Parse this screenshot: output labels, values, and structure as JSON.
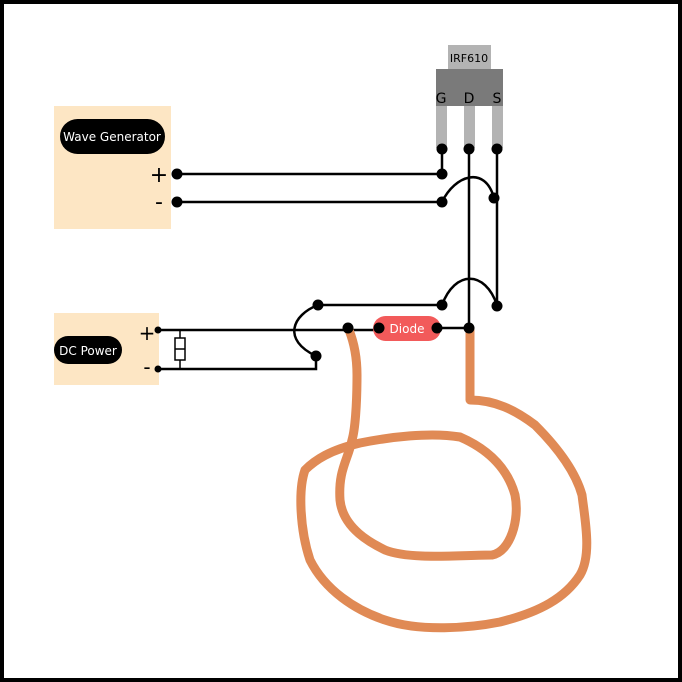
{
  "transistor": {
    "label": "IRF610",
    "pins": {
      "gate": "G",
      "drain": "D",
      "source": "S"
    }
  },
  "wave_generator": {
    "label": "Wave Generator",
    "plus": "+",
    "minus": "-"
  },
  "dc_power": {
    "label": "DC Power",
    "plus": "+",
    "minus": "-"
  },
  "diode": {
    "label": "Diode"
  },
  "colors": {
    "source_box": "#fde6c4",
    "pill": "#000000",
    "diode": "#f25a5a",
    "transistor_body": "#7a7a7a",
    "transistor_tab": "#b3b3b3",
    "pin": "#b3b3b3",
    "coil": "#e08a55",
    "wire": "#000000"
  }
}
